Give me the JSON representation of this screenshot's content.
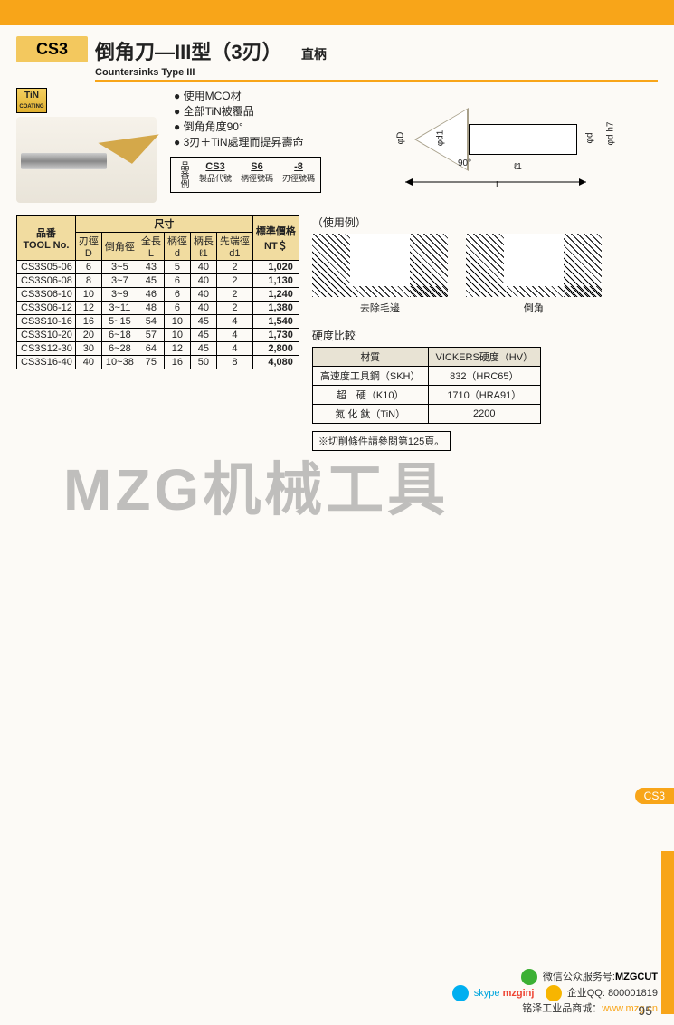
{
  "header": {
    "badge": "CS3",
    "title_cn": "倒角刀—III型（3刃）",
    "title_en": "Countersinks Type III",
    "shank": "直柄"
  },
  "tin_badge": {
    "line1": "TiN",
    "line2": "COATING"
  },
  "bullets": [
    "使用MCO材",
    "全部TiN被覆品",
    "倒角角度90°",
    "3刃＋TiN處理而提昇壽命"
  ],
  "code_example": {
    "label": "品番例",
    "parts": [
      {
        "code": "CS3",
        "desc": "製品代號"
      },
      {
        "code": "S6",
        "desc": "柄徑號碼"
      },
      {
        "code": "-8",
        "desc": "刃徑號碼"
      }
    ]
  },
  "tech_dims": {
    "D": "φD",
    "d1": "φd1",
    "d": "φd",
    "dh7": "φd h7",
    "l1": "ℓ1",
    "L": "L",
    "ang": "90°"
  },
  "spec_table": {
    "group_headers": {
      "tool": "品番\nTOOL No.",
      "size": "尺寸",
      "price": "標準價格\nNT＄"
    },
    "sub_headers": [
      "刃徑\nD",
      "倒角徑",
      "全長\nL",
      "柄徑\nd",
      "柄長\nℓ1",
      "先端徑\nd1"
    ],
    "rows": [
      [
        "CS3S05-06",
        "6",
        "3~5",
        "43",
        "5",
        "40",
        "2",
        "1,020"
      ],
      [
        "CS3S06-08",
        "8",
        "3~7",
        "45",
        "6",
        "40",
        "2",
        "1,130"
      ],
      [
        "CS3S06-10",
        "10",
        "3~9",
        "46",
        "6",
        "40",
        "2",
        "1,240"
      ],
      [
        "CS3S06-12",
        "12",
        "3~11",
        "48",
        "6",
        "40",
        "2",
        "1,380"
      ],
      [
        "CS3S10-16",
        "16",
        "5~15",
        "54",
        "10",
        "45",
        "4",
        "1,540"
      ],
      [
        "CS3S10-20",
        "20",
        "6~18",
        "57",
        "10",
        "45",
        "4",
        "1,730"
      ],
      [
        "CS3S12-30",
        "30",
        "6~28",
        "64",
        "12",
        "45",
        "4",
        "2,800"
      ],
      [
        "CS3S16-40",
        "40",
        "10~38",
        "75",
        "16",
        "50",
        "8",
        "4,080"
      ]
    ]
  },
  "usage": {
    "label": "（使用例）",
    "fig1": "去除毛邊",
    "fig2": "倒角"
  },
  "hardness": {
    "label": "硬度比較",
    "headers": [
      "材質",
      "VICKERS硬度（HV）"
    ],
    "rows": [
      [
        "高速度工具鋼（SKH）",
        "832（HRC65）"
      ],
      [
        "超　硬（K10）",
        "1710（HRA91）"
      ],
      [
        "氮 化 鈦（TiN）",
        "2200"
      ]
    ]
  },
  "note": "※切削條件請參閱第125頁。",
  "watermark": "MZG机械工具",
  "side_tab": "CS3",
  "footer": {
    "wechat_lbl": "微信公众服务号:",
    "wechat_id": "MZGCUT",
    "skype": "skype",
    "mzginj": "mzginj",
    "qq_lbl": "企业QQ:",
    "qq_no": "800001819",
    "shop": "铭泽工业品商城：",
    "url": "www.mzg.cn",
    "page": "95"
  }
}
